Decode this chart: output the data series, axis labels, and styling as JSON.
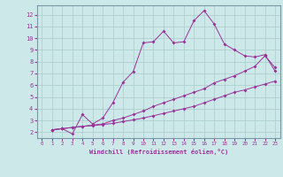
{
  "xlabel": "Windchill (Refroidissement éolien,°C)",
  "bg_color": "#cce8e8",
  "line_color": "#993399",
  "grid_color": "#aacccc",
  "spine_color": "#7799aa",
  "xlim": [
    -0.5,
    23.5
  ],
  "ylim": [
    1.5,
    12.8
  ],
  "xticks": [
    0,
    1,
    2,
    3,
    4,
    5,
    6,
    7,
    8,
    9,
    10,
    11,
    12,
    13,
    14,
    15,
    16,
    17,
    18,
    19,
    20,
    21,
    22,
    23
  ],
  "yticks": [
    2,
    3,
    4,
    5,
    6,
    7,
    8,
    9,
    10,
    11,
    12
  ],
  "line1_x": [
    1,
    2,
    3,
    4,
    5,
    6,
    7,
    8,
    9,
    10,
    11,
    12,
    13,
    14,
    15,
    16,
    17,
    18,
    19,
    20,
    21,
    22,
    23
  ],
  "line1_y": [
    2.2,
    2.3,
    1.85,
    3.5,
    2.7,
    3.2,
    4.5,
    6.25,
    7.15,
    9.6,
    9.7,
    10.6,
    9.6,
    9.7,
    11.5,
    12.35,
    11.2,
    9.5,
    9.0,
    8.5,
    8.4,
    8.6,
    7.2
  ],
  "line2_x": [
    1,
    2,
    3,
    4,
    5,
    6,
    7,
    8,
    9,
    10,
    11,
    12,
    13,
    14,
    15,
    16,
    17,
    18,
    19,
    20,
    21,
    22,
    23
  ],
  "line2_y": [
    2.2,
    2.3,
    2.4,
    2.5,
    2.6,
    2.7,
    3.0,
    3.2,
    3.5,
    3.8,
    4.2,
    4.5,
    4.8,
    5.1,
    5.4,
    5.7,
    6.2,
    6.5,
    6.8,
    7.2,
    7.6,
    8.5,
    7.5
  ],
  "line3_x": [
    1,
    2,
    3,
    4,
    5,
    6,
    7,
    8,
    9,
    10,
    11,
    12,
    13,
    14,
    15,
    16,
    17,
    18,
    19,
    20,
    21,
    22,
    23
  ],
  "line3_y": [
    2.2,
    2.3,
    2.4,
    2.5,
    2.55,
    2.65,
    2.75,
    2.9,
    3.05,
    3.2,
    3.4,
    3.6,
    3.8,
    4.0,
    4.2,
    4.5,
    4.8,
    5.1,
    5.4,
    5.6,
    5.85,
    6.1,
    6.35
  ]
}
